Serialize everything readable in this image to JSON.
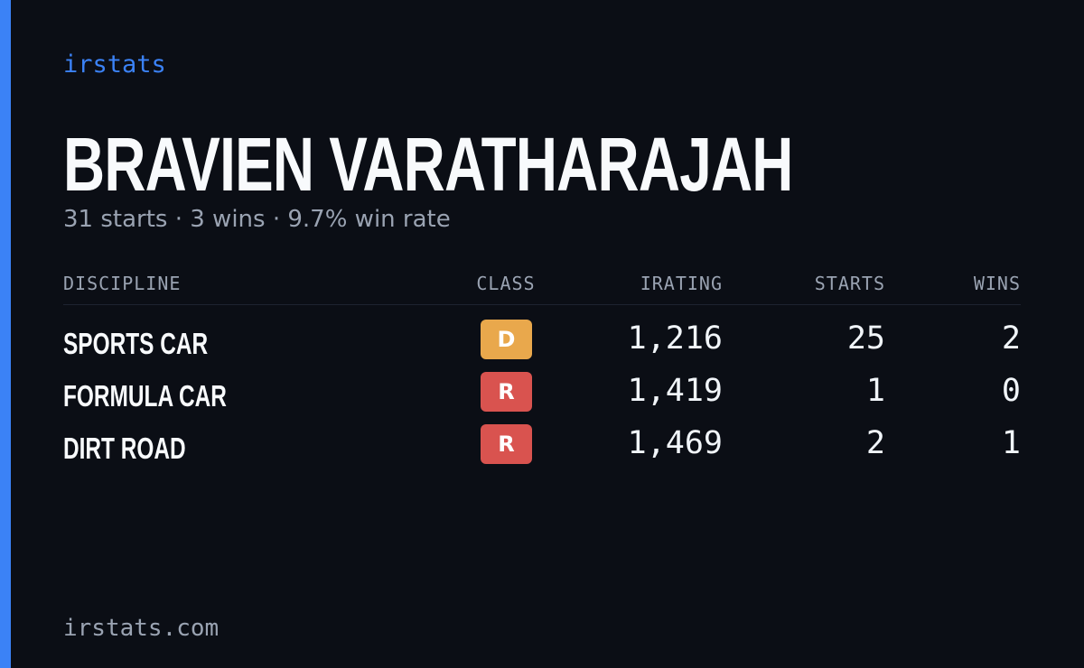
{
  "header": {
    "brand": "irstats",
    "name": "BRAVIEN VARATHARAJAH",
    "summary": "31 starts · 3 wins · 9.7% win rate"
  },
  "table": {
    "columns": [
      "DISCIPLINE",
      "CLASS",
      "IRATING",
      "STARTS",
      "WINS"
    ],
    "rows": [
      {
        "discipline": "SPORTS CAR",
        "class": "D",
        "class_color": "#e9a84c",
        "irating": "1,216",
        "starts": "25",
        "wins": "2"
      },
      {
        "discipline": "FORMULA CAR",
        "class": "R",
        "class_color": "#d9534f",
        "irating": "1,419",
        "starts": "1",
        "wins": "0"
      },
      {
        "discipline": "DIRT ROAD",
        "class": "R",
        "class_color": "#d9534f",
        "irating": "1,469",
        "starts": "2",
        "wins": "1"
      }
    ]
  },
  "footer": {
    "site": "irstats.com"
  }
}
